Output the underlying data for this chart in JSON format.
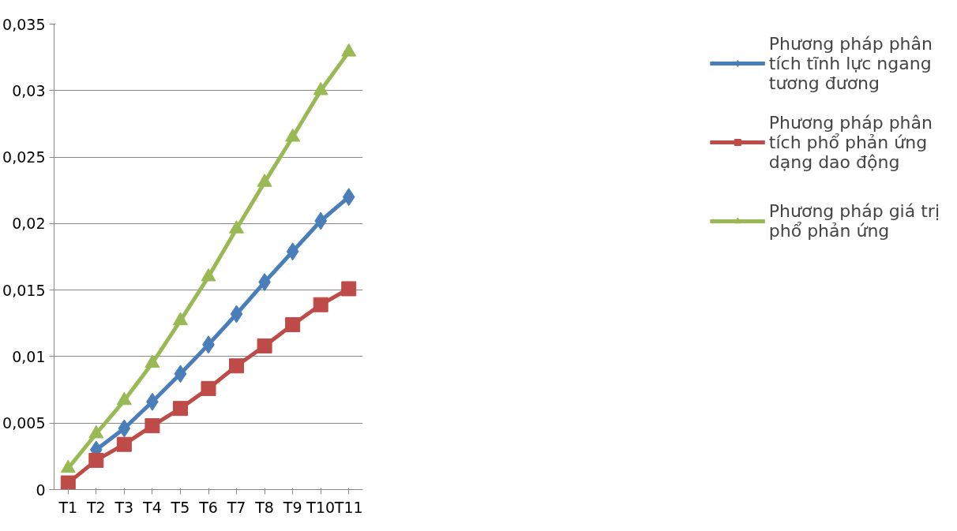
{
  "chart_data": {
    "type": "line",
    "categories": [
      "T1",
      "T2",
      "T3",
      "T4",
      "T5",
      "T6",
      "T7",
      "T8",
      "T9",
      "T10",
      "T11"
    ],
    "series": [
      {
        "name": "Phương pháp phân tích tĩnh lực ngang tương đương",
        "color": "#4a7ebb",
        "marker": "diamond",
        "values": [
          null,
          0.003,
          0.0046,
          0.0066,
          0.0087,
          0.0109,
          0.0132,
          0.0156,
          0.0179,
          0.0202,
          0.022
        ]
      },
      {
        "name": "Phương pháp phân tích phổ phản ứng dạng dao động",
        "color": "#be4b48",
        "marker": "square",
        "values": [
          0.0005,
          0.0022,
          0.0034,
          0.0048,
          0.0061,
          0.0076,
          0.0093,
          0.0108,
          0.0124,
          0.0139,
          0.0151
        ]
      },
      {
        "name": "Phương pháp giá trị phổ phản ứng",
        "color": "#98b954",
        "marker": "triangle",
        "values": [
          0.0016,
          0.0042,
          0.0067,
          0.0095,
          0.0127,
          0.016,
          0.0196,
          0.0231,
          0.0265,
          0.03,
          0.0329
        ]
      }
    ],
    "ylim": [
      0,
      0.035
    ],
    "yticks": [
      0,
      {
        "value": 0.005,
        "label": "0,005"
      },
      {
        "value": 0.01,
        "label": "0,01"
      },
      {
        "value": 0.015,
        "label": "0,015"
      },
      {
        "value": 0.02,
        "label": "0,02"
      },
      {
        "value": 0.025,
        "label": "0,025"
      },
      {
        "value": 0.03,
        "label": "0,03"
      },
      {
        "value": 0.035,
        "label": "0,035"
      }
    ],
    "grid": "y",
    "legend": "right",
    "line_style": "solid"
  }
}
